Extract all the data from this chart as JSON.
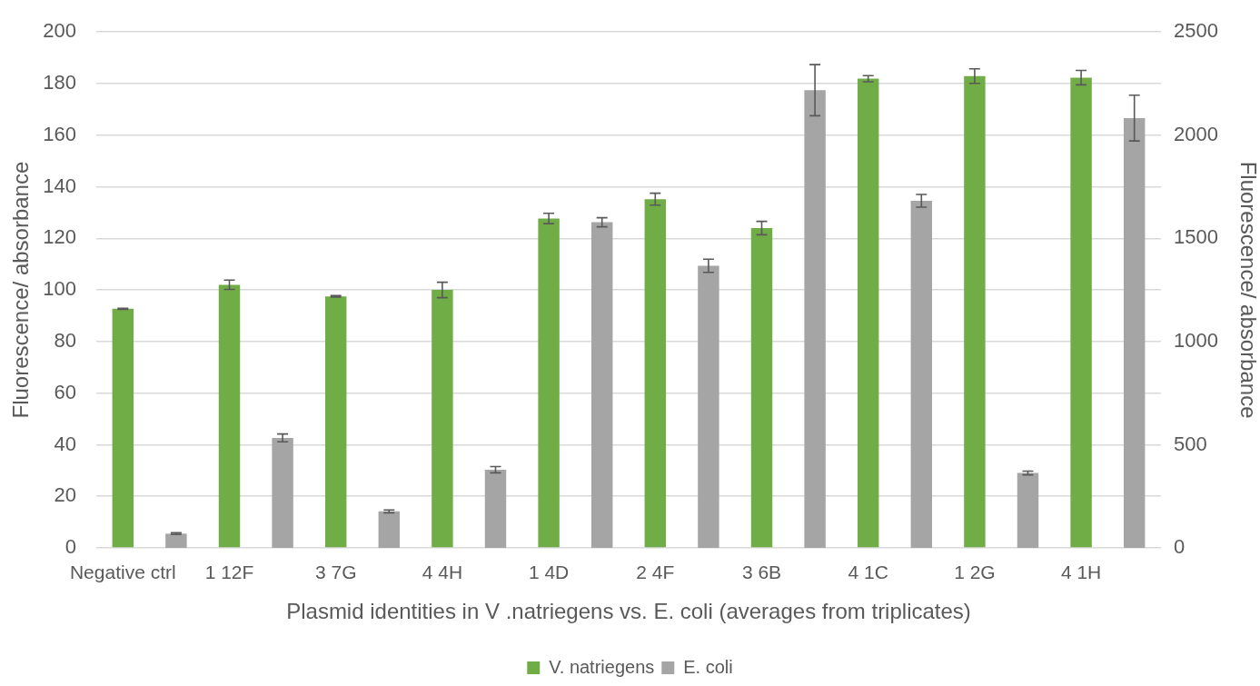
{
  "chart_data": {
    "type": "bar",
    "xlabel": "Plasmid identities in V .natriegens vs. E. coli (averages from triplicates)",
    "ylabel": "Fluorescence/ absorbance",
    "y2label": "Fluorescence/ absorbance",
    "categories": [
      "Negative ctrl",
      null,
      "1 12F",
      null,
      "3 7G",
      null,
      "4 4H",
      null,
      "1 4D",
      null,
      "2 4F",
      null,
      "3 6B",
      null,
      "4 1C",
      null,
      "1 2G",
      null,
      "4 1H",
      null
    ],
    "series": [
      {
        "name": "V. natriegens",
        "color": "#70ad47",
        "values": [
          92.7,
          null,
          102.0,
          null,
          97.5,
          null,
          100.0,
          null,
          127.7,
          null,
          135.2,
          null,
          124.0,
          null,
          181.9,
          null,
          182.9,
          null,
          182.3,
          null
        ],
        "errors": [
          0.2,
          null,
          1.8,
          null,
          0.3,
          null,
          3.0,
          null,
          2.0,
          null,
          2.3,
          null,
          2.6,
          null,
          1.2,
          null,
          2.8,
          null,
          2.8,
          null
        ]
      },
      {
        "name": "E. coli",
        "color": "#a5a5a5",
        "axis": "y2",
        "values": [
          null,
          69,
          null,
          533,
          null,
          177,
          null,
          379,
          null,
          1578,
          null,
          1367,
          null,
          2218,
          null,
          1682,
          null,
          363,
          null,
          2083
        ],
        "errors": [
          null,
          4,
          null,
          19,
          null,
          7,
          null,
          15,
          null,
          22,
          null,
          32,
          null,
          124,
          null,
          31,
          null,
          9,
          null,
          111
        ]
      }
    ],
    "ylim": [
      0,
      200
    ],
    "yticks": [
      0,
      20,
      40,
      60,
      80,
      100,
      120,
      140,
      160,
      180,
      200
    ],
    "y2lim": [
      0,
      2500
    ],
    "y2ticks": [
      0,
      500,
      1000,
      1500,
      2000,
      2500
    ],
    "grid": "y",
    "legend": "bottom"
  }
}
